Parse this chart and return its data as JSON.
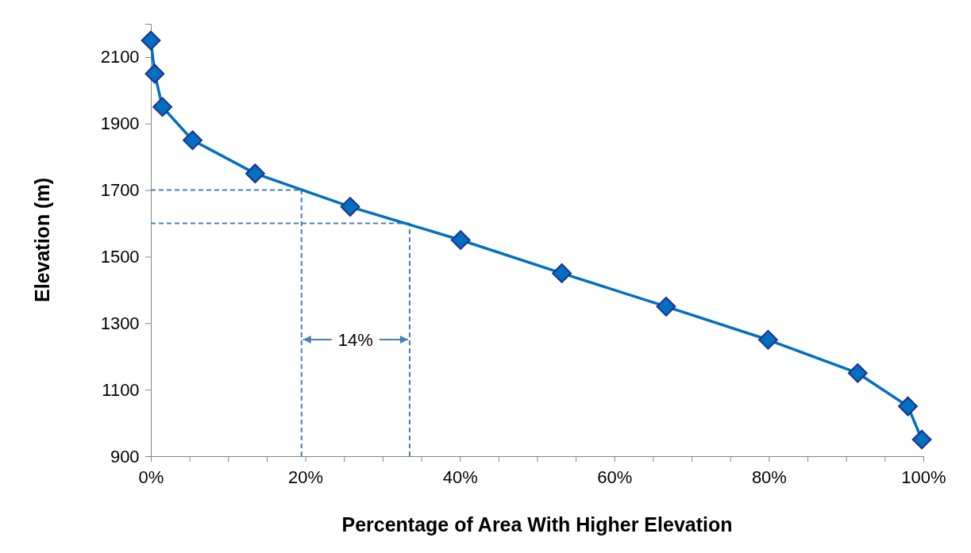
{
  "chart_data": {
    "type": "line",
    "xlabel": "Percentage of Area With Higher Elevation",
    "ylabel": "Elevation (m)",
    "x": [
      0,
      0.5,
      1.5,
      5.4,
      13.5,
      25.8,
      40.1,
      53.2,
      66.7,
      79.9,
      91.5,
      98,
      99.8
    ],
    "series": [
      {
        "color": "#0070c0",
        "values": [
          2150,
          2050,
          1950,
          1850,
          1750,
          1650,
          1550,
          1450,
          1350,
          1250,
          1150,
          1050,
          950
        ]
      }
    ],
    "marker": "diamond",
    "line_style": "solid",
    "grid": false,
    "xlim": [
      0,
      100
    ],
    "ylim": [
      900,
      2200
    ],
    "xticks": [
      {
        "value": 0,
        "label": "0%"
      },
      {
        "value": 5,
        "label": null
      },
      {
        "value": 10,
        "label": null
      },
      {
        "value": 15,
        "label": null
      },
      {
        "value": 20,
        "label": "20%"
      },
      {
        "value": 25,
        "label": null
      },
      {
        "value": 30,
        "label": null
      },
      {
        "value": 35,
        "label": null
      },
      {
        "value": 40,
        "label": "40%"
      },
      {
        "value": 45,
        "label": null
      },
      {
        "value": 50,
        "label": null
      },
      {
        "value": 55,
        "label": null
      },
      {
        "value": 60,
        "label": "60%"
      },
      {
        "value": 65,
        "label": null
      },
      {
        "value": 70,
        "label": null
      },
      {
        "value": 75,
        "label": null
      },
      {
        "value": 80,
        "label": "80%"
      },
      {
        "value": 85,
        "label": null
      },
      {
        "value": 90,
        "label": null
      },
      {
        "value": 95,
        "label": null
      },
      {
        "value": 100,
        "label": "100%"
      }
    ],
    "yticks": [
      900,
      1100,
      1300,
      1500,
      1700,
      1900,
      2100
    ],
    "ref_lines": [
      {
        "axis": "y",
        "value": 1700,
        "color": "#4a7ebb",
        "line_style": "dashed"
      },
      {
        "axis": "y",
        "value": 1600,
        "color": "#4a7ebb",
        "line_style": "dashed"
      },
      {
        "axis": "x",
        "value": 19.5,
        "color": "#4a7ebb",
        "line_style": "dashed"
      },
      {
        "axis": "x",
        "value": 33.5,
        "color": "#4a7ebb",
        "line_style": "dashed"
      }
    ],
    "annotations": [
      "14%"
    ]
  }
}
